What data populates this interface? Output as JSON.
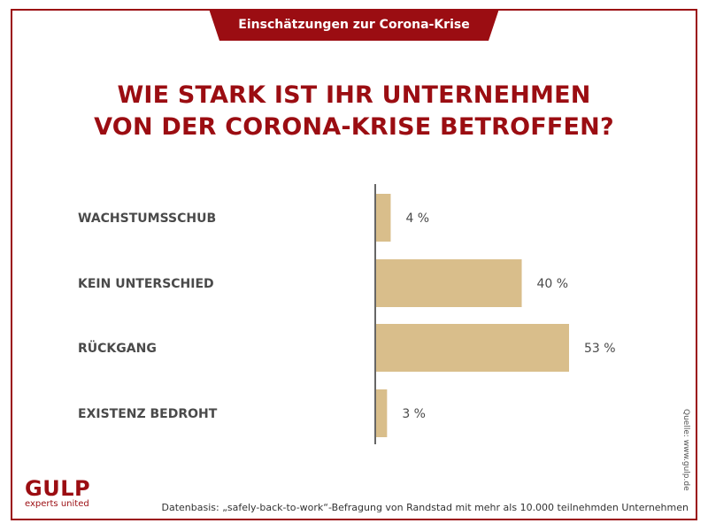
{
  "header": {
    "tab_label": "Einschätzungen zur Corona-Krise"
  },
  "chart_data": {
    "type": "bar",
    "orientation": "horizontal",
    "title_line1": "WIE STARK IST IHR UNTERNEHMEN",
    "title_line2": "VON DER CORONA-KRISE BETROFFEN?",
    "categories": [
      "WACHSTUMSSCHUB",
      "KEIN UNTERSCHIED",
      "RÜCKGANG",
      "EXISTENZ BEDROHT"
    ],
    "values": [
      4,
      40,
      53,
      3
    ],
    "value_labels": [
      "4 %",
      "40 %",
      "53 %",
      "3 %"
    ],
    "unit": "%",
    "xlim": [
      0,
      60
    ],
    "grid": false,
    "legend": "none",
    "bar_color": "#d9be8b"
  },
  "source": {
    "label": "Quelle: www.gulp.de"
  },
  "brand": {
    "name": "GULP",
    "tagline": "experts united",
    "color": "#9b0d12"
  },
  "footnote": {
    "text": "Datenbasis: „safely-back-to-work“-Befragung von Randstad mit mehr als 10.000 teilnehmden Unternehmen"
  }
}
